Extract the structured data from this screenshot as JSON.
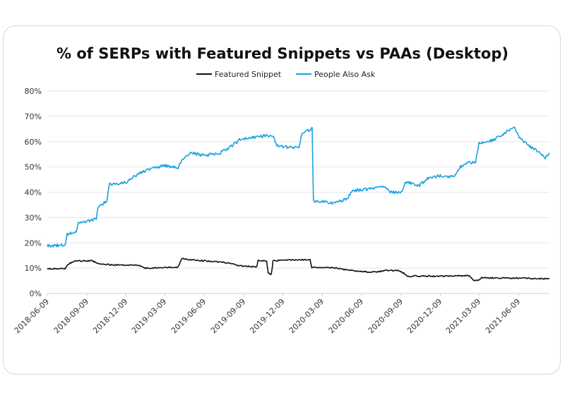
{
  "chart_data": {
    "type": "line",
    "title": "% of SERPs with Featured Snippets vs PAAs (Desktop)",
    "xlabel": "",
    "ylabel": "",
    "ylim": [
      0,
      80
    ],
    "y_ticks": [
      "0%",
      "10%",
      "20%",
      "30%",
      "40%",
      "50%",
      "60%",
      "70%",
      "80%"
    ],
    "x_ticks": [
      "2018-06-09",
      "2018-09-09",
      "2018-12-09",
      "2019-03-09",
      "2019-06-09",
      "2019-09-09",
      "2019-12-09",
      "2020-03-09",
      "2020-06-09",
      "2020-09-09",
      "2020-12-09",
      "2021-03-09",
      "2021-06-09"
    ],
    "x_range": [
      "2018-06-09",
      "2021-08-20"
    ],
    "grid": "horizontal",
    "legend": "top-center",
    "series": [
      {
        "name": "Featured Snippet",
        "color": "#111111",
        "points": [
          [
            "2018-06-09",
            9.7
          ],
          [
            "2018-07-20",
            9.8
          ],
          [
            "2018-07-28",
            11.5
          ],
          [
            "2018-08-10",
            12.8
          ],
          [
            "2018-09-20",
            12.9
          ],
          [
            "2018-10-05",
            11.8
          ],
          [
            "2018-11-01",
            11.3
          ],
          [
            "2018-12-15",
            11.2
          ],
          [
            "2019-01-09",
            11.0
          ],
          [
            "2019-01-20",
            10.0
          ],
          [
            "2019-03-09",
            10.2
          ],
          [
            "2019-04-09",
            10.4
          ],
          [
            "2019-04-18",
            14.0
          ],
          [
            "2019-05-01",
            13.3
          ],
          [
            "2019-06-09",
            12.9
          ],
          [
            "2019-07-09",
            12.4
          ],
          [
            "2019-08-09",
            12.1
          ],
          [
            "2019-08-25",
            11.0
          ],
          [
            "2019-09-20",
            10.7
          ],
          [
            "2019-10-09",
            10.4
          ],
          [
            "2019-10-12",
            13.0
          ],
          [
            "2019-11-01",
            12.7
          ],
          [
            "2019-11-05",
            7.8
          ],
          [
            "2019-11-12",
            7.6
          ],
          [
            "2019-11-16",
            12.8
          ],
          [
            "2019-12-09",
            13.1
          ],
          [
            "2020-01-15",
            13.4
          ],
          [
            "2020-02-10",
            13.2
          ],
          [
            "2020-02-14",
            10.3
          ],
          [
            "2020-03-09",
            10.3
          ],
          [
            "2020-04-09",
            10.1
          ],
          [
            "2020-05-01",
            9.4
          ],
          [
            "2020-06-09",
            8.6
          ],
          [
            "2020-07-15",
            8.4
          ],
          [
            "2020-08-01",
            9.1
          ],
          [
            "2020-09-05",
            9.0
          ],
          [
            "2020-09-15",
            8.0
          ],
          [
            "2020-09-25",
            6.6
          ],
          [
            "2020-10-09",
            6.9
          ],
          [
            "2020-12-09",
            6.8
          ],
          [
            "2021-02-01",
            7.0
          ],
          [
            "2021-02-15",
            7.0
          ],
          [
            "2021-02-25",
            5.1
          ],
          [
            "2021-03-10",
            5.3
          ],
          [
            "2021-03-15",
            6.2
          ],
          [
            "2021-04-09",
            6.1
          ],
          [
            "2021-06-09",
            6.0
          ],
          [
            "2021-07-20",
            5.9
          ],
          [
            "2021-08-20",
            5.8
          ]
        ]
      },
      {
        "name": "People Also Ask",
        "color": "#1ba1e2",
        "points": [
          [
            "2018-06-09",
            18.8
          ],
          [
            "2018-07-20",
            19.2
          ],
          [
            "2018-07-25",
            23.5
          ],
          [
            "2018-08-15",
            24.5
          ],
          [
            "2018-08-20",
            27.8
          ],
          [
            "2018-09-09",
            28.4
          ],
          [
            "2018-10-01",
            29.5
          ],
          [
            "2018-10-05",
            34.0
          ],
          [
            "2018-10-25",
            36.5
          ],
          [
            "2018-11-01",
            43.5
          ],
          [
            "2018-11-10",
            43.0
          ],
          [
            "2018-12-09",
            44.0
          ],
          [
            "2019-01-09",
            47.5
          ],
          [
            "2019-02-09",
            49.5
          ],
          [
            "2019-03-09",
            50.5
          ],
          [
            "2019-04-09",
            49.5
          ],
          [
            "2019-04-20",
            53.5
          ],
          [
            "2019-05-10",
            55.5
          ],
          [
            "2019-06-09",
            54.5
          ],
          [
            "2019-07-15",
            55.5
          ],
          [
            "2019-08-09",
            57.8
          ],
          [
            "2019-09-01",
            61.0
          ],
          [
            "2019-10-09",
            62.0
          ],
          [
            "2019-11-15",
            62.5
          ],
          [
            "2019-11-25",
            58.5
          ],
          [
            "2019-12-15",
            57.8
          ],
          [
            "2020-01-15",
            57.5
          ],
          [
            "2020-01-22",
            63.5
          ],
          [
            "2020-02-15",
            65.0
          ],
          [
            "2020-02-18",
            36.5
          ],
          [
            "2020-03-09",
            36.2
          ],
          [
            "2020-04-09",
            35.8
          ],
          [
            "2020-05-09",
            37.5
          ],
          [
            "2020-05-15",
            40.5
          ],
          [
            "2020-06-09",
            41.0
          ],
          [
            "2020-07-09",
            41.5
          ],
          [
            "2020-08-01",
            42.5
          ],
          [
            "2020-08-15",
            40.0
          ],
          [
            "2020-09-09",
            40.0
          ],
          [
            "2020-09-20",
            44.0
          ],
          [
            "2020-10-20",
            42.5
          ],
          [
            "2020-11-09",
            45.5
          ],
          [
            "2020-12-09",
            46.5
          ],
          [
            "2021-01-09",
            46.0
          ],
          [
            "2021-01-25",
            50.0
          ],
          [
            "2021-02-09",
            51.5
          ],
          [
            "2021-03-01",
            52.0
          ],
          [
            "2021-03-09",
            59.5
          ],
          [
            "2021-04-09",
            60.5
          ],
          [
            "2021-05-01",
            62.5
          ],
          [
            "2021-05-15",
            64.5
          ],
          [
            "2021-06-01",
            65.5
          ],
          [
            "2021-06-09",
            62.0
          ],
          [
            "2021-07-01",
            58.5
          ],
          [
            "2021-07-20",
            56.5
          ],
          [
            "2021-08-10",
            53.5
          ],
          [
            "2021-08-20",
            55.5
          ]
        ]
      }
    ]
  }
}
